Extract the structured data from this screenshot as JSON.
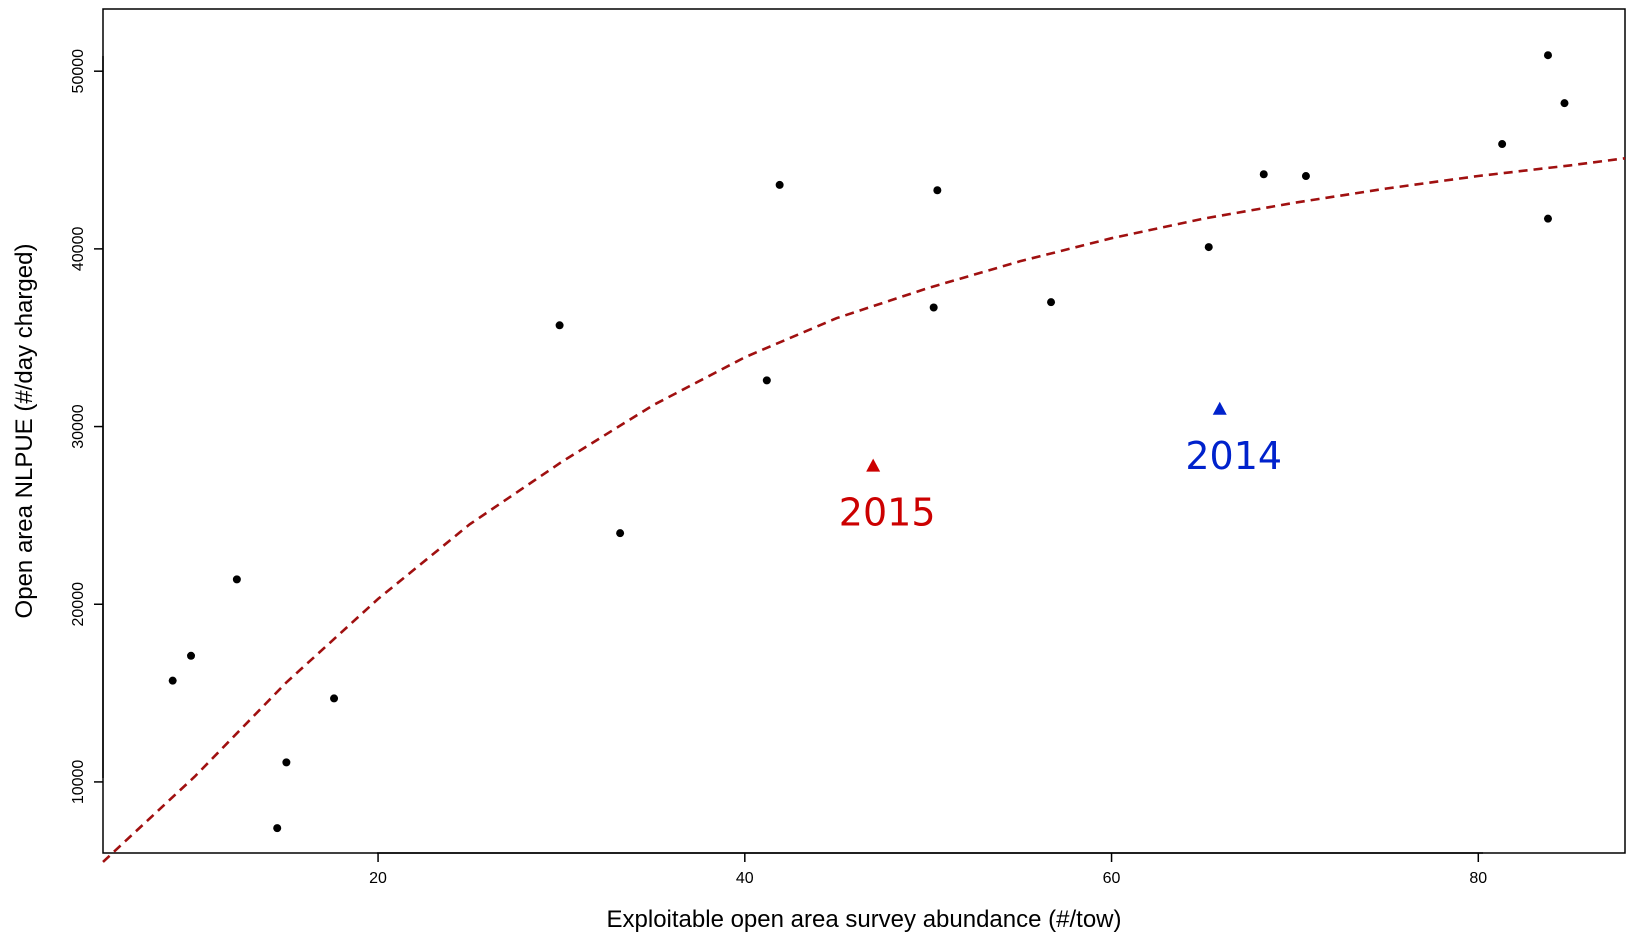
{
  "chart_data": {
    "type": "scatter",
    "xlabel": "Exploitable open area survey abundance (#/tow)",
    "ylabel": "Open area NLPUE (#/day charged)",
    "xlim": [
      5,
      88
    ],
    "ylim": [
      6000,
      53500
    ],
    "x_ticks": [
      20,
      40,
      60,
      80
    ],
    "y_ticks": [
      10000,
      20000,
      30000,
      40000,
      50000
    ],
    "grid": false,
    "series": [
      {
        "marker": "circle",
        "color": "#000000",
        "points": [
          [
            8.8,
            15700
          ],
          [
            9.8,
            17100
          ],
          [
            12.3,
            21400
          ],
          [
            14.5,
            7400
          ],
          [
            15.0,
            11100
          ],
          [
            17.6,
            14700
          ],
          [
            29.9,
            35700
          ],
          [
            33.2,
            24000
          ],
          [
            41.2,
            32600
          ],
          [
            41.9,
            43600
          ],
          [
            50.3,
            36700
          ],
          [
            50.5,
            43300
          ],
          [
            56.7,
            37000
          ],
          [
            65.3,
            40100
          ],
          [
            68.3,
            44200
          ],
          [
            70.6,
            44100
          ],
          [
            81.3,
            45900
          ],
          [
            83.8,
            41700
          ],
          [
            83.8,
            50900
          ],
          [
            84.7,
            48200
          ]
        ]
      }
    ],
    "highlighted_points": [
      {
        "label": "2015",
        "x": 47.0,
        "y": 27800,
        "marker": "triangle",
        "color": "#cc0000"
      },
      {
        "label": "2014",
        "x": 65.9,
        "y": 31000,
        "marker": "triangle",
        "color": "#0022cc"
      }
    ],
    "fit_curve": {
      "style": "dashed",
      "color": "#a01010",
      "points": [
        [
          5.0,
          5500
        ],
        [
          10,
          10300
        ],
        [
          15,
          15600
        ],
        [
          20,
          20300
        ],
        [
          25,
          24500
        ],
        [
          30,
          28000
        ],
        [
          35,
          31200
        ],
        [
          40,
          33900
        ],
        [
          45,
          36100
        ],
        [
          50,
          37800
        ],
        [
          55,
          39300
        ],
        [
          60,
          40600
        ],
        [
          65,
          41700
        ],
        [
          70,
          42600
        ],
        [
          75,
          43400
        ],
        [
          80,
          44100
        ],
        [
          85,
          44700
        ],
        [
          88,
          45100
        ]
      ]
    }
  }
}
